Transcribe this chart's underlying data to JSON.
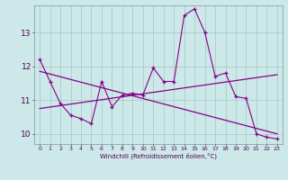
{
  "xlabel": "Windchill (Refroidissement éolien,°C)",
  "bg_color": "#cce8e8",
  "line_color": "#880088",
  "grid_color": "#aacccc",
  "ylim": [
    9.7,
    13.8
  ],
  "xlim": [
    -0.5,
    23.5
  ],
  "yticks": [
    10,
    11,
    12,
    13
  ],
  "xticks": [
    0,
    1,
    2,
    3,
    4,
    5,
    6,
    7,
    8,
    9,
    10,
    11,
    12,
    13,
    14,
    15,
    16,
    17,
    18,
    19,
    20,
    21,
    22,
    23
  ],
  "series1_x": [
    0,
    1,
    2,
    3,
    4,
    5,
    6,
    7,
    8,
    9,
    10,
    11,
    12,
    13,
    14,
    15,
    16,
    17,
    18,
    19,
    20,
    21,
    22,
    23
  ],
  "series1_y": [
    12.2,
    11.55,
    10.9,
    10.55,
    10.45,
    10.3,
    11.55,
    10.8,
    11.15,
    11.2,
    11.15,
    11.95,
    11.55,
    11.55,
    13.5,
    13.7,
    13.0,
    11.7,
    11.8,
    11.1,
    11.05,
    10.0,
    9.9,
    9.85
  ],
  "trend1_x": [
    0,
    23
  ],
  "trend1_y": [
    10.75,
    11.75
  ],
  "trend2_x": [
    0,
    23
  ],
  "trend2_y": [
    11.85,
    10.0
  ]
}
